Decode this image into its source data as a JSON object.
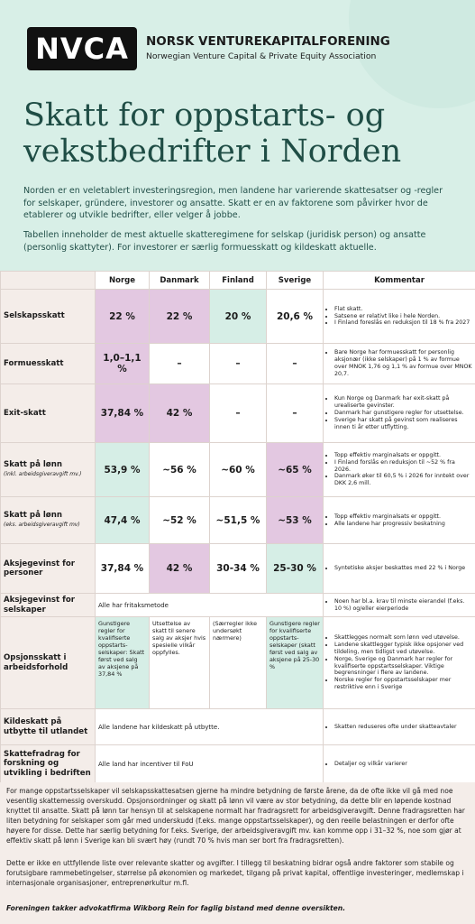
{
  "header": {
    "logo": "NVCA",
    "organization": "NORSK VENTUREKAPITALFORENING",
    "organization_en": "Norwegian Venture Capital & Private Equity Association",
    "title": "Skatt for oppstarts- og vekstbedrifter i Norden",
    "intro": [
      "Norden er en veletablert investeringsregion, men landene har varierende skattesatser og -regler for selskaper, gründere, investorer og ansatte. Skatt er en av faktorene som påvirker hvor de etablerer og utvikle bedrifter, eller velger å jobbe.",
      "Tabellen inneholder de mest aktuelle skatteregimene for selskap (juridisk person) og ansatte (personlig skattyter). For investorer er særlig formuesskatt og kildeskatt aktuelle."
    ]
  },
  "table": {
    "columns": [
      "Norge",
      "Danmark",
      "Finland",
      "Sverige",
      "Kommentar"
    ],
    "rows": [
      {
        "label": "Selskapsskatt",
        "cells": [
          "22 %",
          "22 %",
          "20 %",
          "20,6 %"
        ],
        "highlights": [
          "#e3c8e1",
          "#e3c8e1",
          "#d6eee6",
          null
        ],
        "comment": [
          "Flat skatt.",
          "Satsene er relativt like i hele Norden.",
          "I Finland foreslås en reduksjon til 18 % fra 2027"
        ]
      },
      {
        "label": "Formuesskatt",
        "cells": [
          "1,0–1,1 %",
          "–",
          "–",
          "–"
        ],
        "highlights": [
          "#e3c8e1",
          null,
          null,
          null
        ],
        "comment": [
          "Bare Norge har formuesskatt for personlig aksjonær (ikke selskaper) på 1 % av formue over MNOK 1,76 og 1,1 % av formue over MNOK 20,7."
        ]
      },
      {
        "label": "Exit-skatt",
        "cells": [
          "37,84 %",
          "42 %",
          "–",
          "–"
        ],
        "highlights": [
          "#e3c8e1",
          "#e3c8e1",
          null,
          null
        ],
        "comment": [
          "Kun Norge og Danmark har exit-skatt på urealiserte gevinster.",
          "Danmark har gunstigere regler for utsettelse.",
          "Sverige har skatt på gevinst som realiseres innen ti år etter utflytting."
        ]
      },
      {
        "label": "Skatt på lønn",
        "sublabel": "(inkl. arbeidsgiveravgift mv.)",
        "cells": [
          "53,9 %",
          "~56 %",
          "~60 %",
          "~65 %"
        ],
        "highlights": [
          "#d6eee6",
          null,
          null,
          "#e3c8e1"
        ],
        "comment": [
          "Topp effektiv marginalsats er oppgitt.",
          "I Finland forslås en reduksjon til ~52 % fra 2026.",
          "Danmark øker til 60,5 % i 2026 for inntekt over DKK 2,6 mill."
        ]
      },
      {
        "label": "Skatt på lønn",
        "sublabel": "(eks. arbeidsgiveravgift mv)",
        "cells": [
          "47,4 %",
          "~52 %",
          "~51,5 %",
          "~53 %"
        ],
        "highlights": [
          "#d6eee6",
          null,
          null,
          "#e3c8e1"
        ],
        "comment": [
          "Topp effektiv marginalsats er oppgitt.",
          "Alle landene har progressiv beskatning"
        ]
      },
      {
        "label": "Aksjegevinst for personer",
        "cells": [
          "37,84 %",
          "42 %",
          "30-34 %",
          "25-30 %"
        ],
        "highlights": [
          null,
          "#e3c8e1",
          null,
          "#d6eee6"
        ],
        "comment": [
          "Syntetiske aksjer beskattes med 22 % i Norge"
        ]
      },
      {
        "label": "Aksjegevinst for selskaper",
        "span": "Alle har fritaksmetode",
        "comment": [
          "Noen har bl.a. krav til minste eierandel (f.eks. 10 %) og/eller eierperiode"
        ]
      },
      {
        "label": "Opsjonsskatt i arbeidsforhold",
        "cells": [
          "Gunstigere regler for kvalifiserte oppstarts-selskaper: Skatt først ved salg av aksjene på 37,84 %",
          "Utsettelse av skatt til senere salg av aksjer hvis spesielle vilkår oppfylles.",
          "(Særregler ikke undersøkt nærmere)",
          "Gunstigere regler for kvalifiserte oppstarts-selskaper (skatt først ved salg av aksjene på 25-30 %"
        ],
        "highlights": [
          "#d6eee6",
          null,
          null,
          "#d6eee6"
        ],
        "comment": [
          "Skattlegges normalt som lønn ved utøvelse.",
          "Landene skattlegger typisk ikke opsjoner ved tildeling, men tidligst ved utøvelse.",
          "Norge, Sverige og Danmark har regler for kvalifiserte oppstartsselskaper. Viktige begrensninger i flere av landene.",
          "Norske regler for oppstartsselskaper mer restriktive enn i Sverige"
        ]
      },
      {
        "label": "Kildeskatt på utbytte til utlandet",
        "span": "Alle landene har kildeskatt på utbytte.",
        "comment": [
          "Skatten reduseres ofte under skatteavtaler"
        ]
      },
      {
        "label": "Skattefradrag for forskning og utvikling i bedriften",
        "span": "Alle land har incentiver til FoU",
        "comment": [
          "Detaljer og vilkår varierer"
        ]
      }
    ]
  },
  "footer": {
    "paragraphs": [
      "For mange oppstartsselskaper vil selskapsskattesatsen gjerne ha mindre betydning de første årene, da de ofte ikke vil gå med noe vesentlig skattemessig overskudd. Opsjonsordninger og skatt på lønn vil være av stor betydning, da dette blir en løpende kostnad knyttet til ansatte. Skatt på lønn tar hensyn til at selskapene normalt har fradragsrett for arbeidsgiveravgift. Denne fradragsretten har liten betydning for selskaper som går med underskudd (f.eks. mange oppstartsselskaper), og den reelle belastningen er derfor ofte høyere for disse. Dette har særlig betydning for f.eks. Sverige, der arbeidsgiveravgift mv. kan komme opp i 31–32 %, noe som gjør at effektiv skatt på lønn i Sverige kan bli svært høy (rundt 70 % hvis man ser bort fra fradragsretten).",
      "Dette er ikke en uttfyllende liste over relevante skatter og avgifter. I tillegg til beskatning bidrar også andre faktorer som stabile og forutsigbare rammebetingelser, størrelse på økonomien og markedet, tilgang på privat kapital, offentlige investeringer, medlemskap i internasjonale organisasjoner, entreprenørkultur m.fl."
    ],
    "thanks": "Foreningen takker advokatfirma Wikborg Rein for faglig bistand med denne oversikten."
  }
}
